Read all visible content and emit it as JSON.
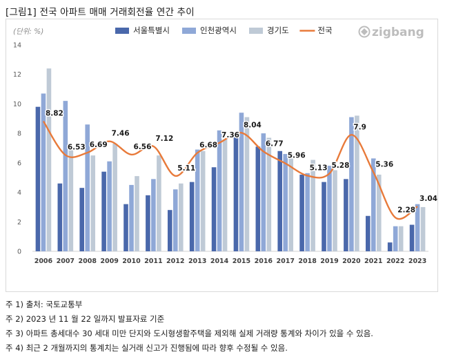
{
  "figure": {
    "title": "[그림1] 전국 아파트 매매 거래회전율 연간 추이",
    "logo_text": "zigbang",
    "notes": [
      "주 1) 출처: 국토교통부",
      "주 2) 2023 년 11 월 22 일까지 발표자료 기준",
      "주 3) 아파트 총세대수 30 세대 미만 단지와 도시형생활주택을 제외해 실제 거래량 통계와 차이가 있을 수 있음.",
      "주 4) 최근 2 개월까지의 통계치는 실거래 신고가 진행됨에 따라 향후 수정될 수 있음."
    ]
  },
  "chart_data": {
    "type": "bar",
    "title": "",
    "unit_label": "(단위: %)",
    "xlabel": "",
    "ylabel": "",
    "ylim": [
      0,
      14
    ],
    "yticks": [
      0,
      2,
      4,
      6,
      8,
      10,
      12,
      14
    ],
    "grid": false,
    "legend_position": "top-center",
    "categories": [
      "2006",
      "2007",
      "2008",
      "2009",
      "2010",
      "2011",
      "2012",
      "2013",
      "2014",
      "2015",
      "2016",
      "2017",
      "2018",
      "2019",
      "2020",
      "2021",
      "2022",
      "2023"
    ],
    "series": [
      {
        "name": "서울특별시",
        "kind": "bar",
        "color": "#4a68ab",
        "values": [
          9.8,
          4.6,
          4.3,
          5.4,
          3.2,
          3.8,
          2.8,
          4.7,
          5.7,
          7.8,
          7.1,
          6.8,
          5.2,
          4.7,
          4.9,
          2.4,
          0.6,
          1.8
        ]
      },
      {
        "name": "인천광역시",
        "kind": "bar",
        "color": "#8fa8d7",
        "values": [
          10.7,
          10.2,
          8.6,
          6.1,
          4.5,
          4.9,
          4.2,
          6.9,
          8.2,
          9.4,
          8.0,
          6.6,
          5.3,
          5.8,
          9.1,
          6.3,
          1.7,
          3.2
        ]
      },
      {
        "name": "경기도",
        "kind": "bar",
        "color": "#bfcad6",
        "values": [
          12.4,
          7.0,
          6.5,
          7.3,
          5.1,
          6.5,
          4.6,
          6.8,
          7.6,
          9.1,
          7.7,
          6.6,
          6.2,
          5.5,
          9.2,
          5.2,
          1.7,
          3.0
        ]
      },
      {
        "name": "전국",
        "kind": "line",
        "color": "#e87a3a",
        "values": [
          8.82,
          6.53,
          6.69,
          7.46,
          6.56,
          7.12,
          5.11,
          6.68,
          7.36,
          8.04,
          6.77,
          5.96,
          5.13,
          5.28,
          7.9,
          5.36,
          2.28,
          3.04
        ],
        "labels": [
          "8.82",
          "6.53",
          "6.69",
          "7.46",
          "6.56",
          "7.12",
          "5.11",
          "6.68",
          "7.36",
          "8.04",
          "6.77",
          "5.96",
          "5.13",
          "5.28",
          "7.9",
          "5.36",
          "2.28",
          "3.04"
        ]
      }
    ]
  }
}
